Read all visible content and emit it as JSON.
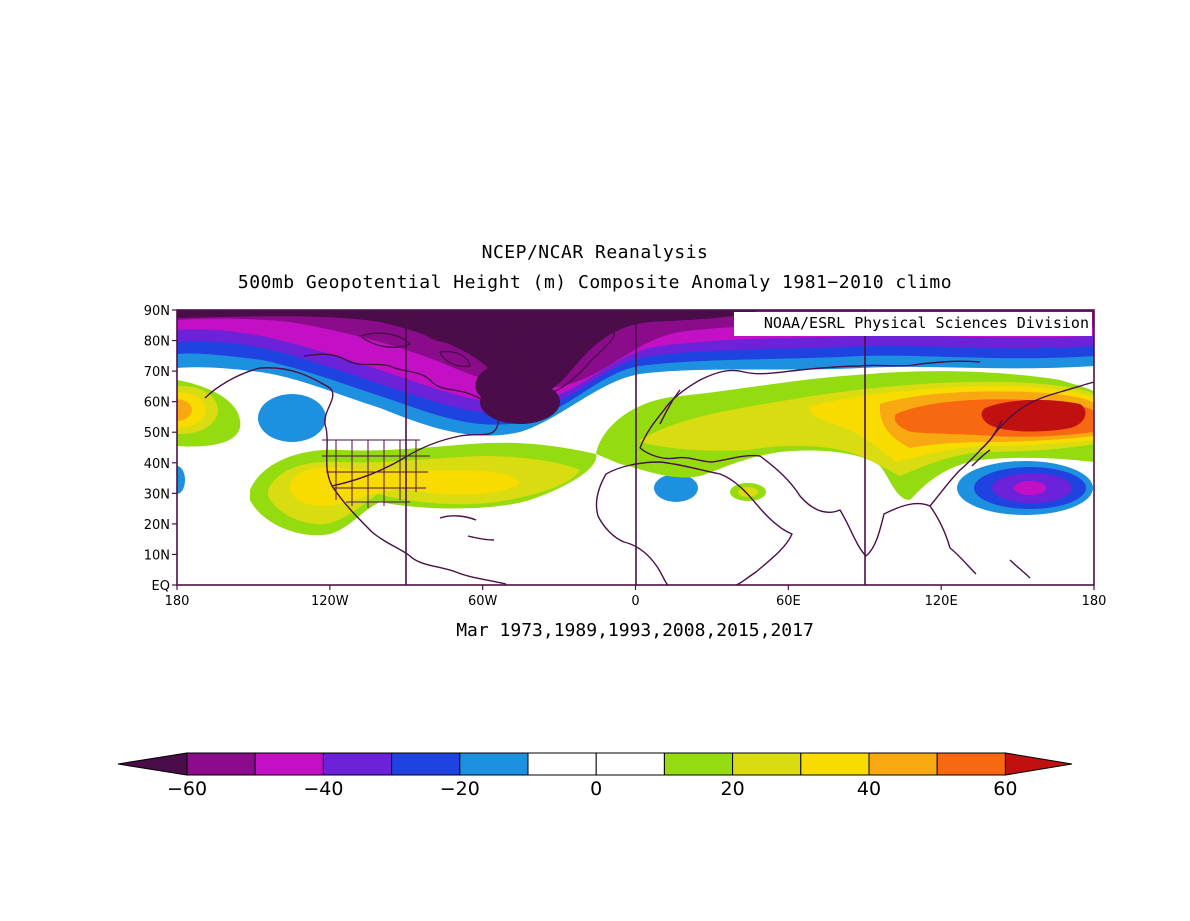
{
  "titles": {
    "line1": "NCEP/NCAR Reanalysis",
    "line2": "500mb Geopotential Height (m) Composite Anomaly 1981−2010 climo",
    "subtitle": "Mar 1973,1989,1993,2008,2015,2017",
    "credit": "NOAA/ESRL Physical Sciences Division"
  },
  "lat_labels": [
    "90N",
    "80N",
    "70N",
    "60N",
    "50N",
    "40N",
    "30N",
    "20N",
    "10N",
    "EQ"
  ],
  "lon_labels": [
    "180",
    "120W",
    "60W",
    "0",
    "60E",
    "120E",
    "180"
  ],
  "colorbar": {
    "colors": [
      "#4a0d4a",
      "#8b0c8b",
      "#c410c4",
      "#6c22d8",
      "#1f43e0",
      "#1e90e0",
      "#ffffff",
      "#ffffff",
      "#94dc10",
      "#d8dc10",
      "#f8dc00",
      "#f8a810",
      "#f86810",
      "#c01010"
    ],
    "labels": [
      "−60",
      "−40",
      "−20",
      "0",
      "20",
      "40",
      "60"
    ]
  },
  "colors": {
    "coast": "#4a1048"
  }
}
